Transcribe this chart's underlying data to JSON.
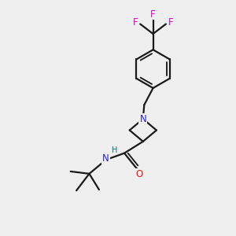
{
  "bg_color": "#efefef",
  "bond_color": "#1a1a1a",
  "N_color": "#2020ee",
  "O_color": "#ee1111",
  "F_color": "#dd00cc",
  "H_color": "#007777",
  "fs": 8.5,
  "fs_small": 7.0,
  "lw": 1.6,
  "figsize": [
    3.0,
    3.0
  ],
  "dpi": 100,
  "xlim": [
    0,
    10
  ],
  "ylim": [
    0,
    10
  ]
}
